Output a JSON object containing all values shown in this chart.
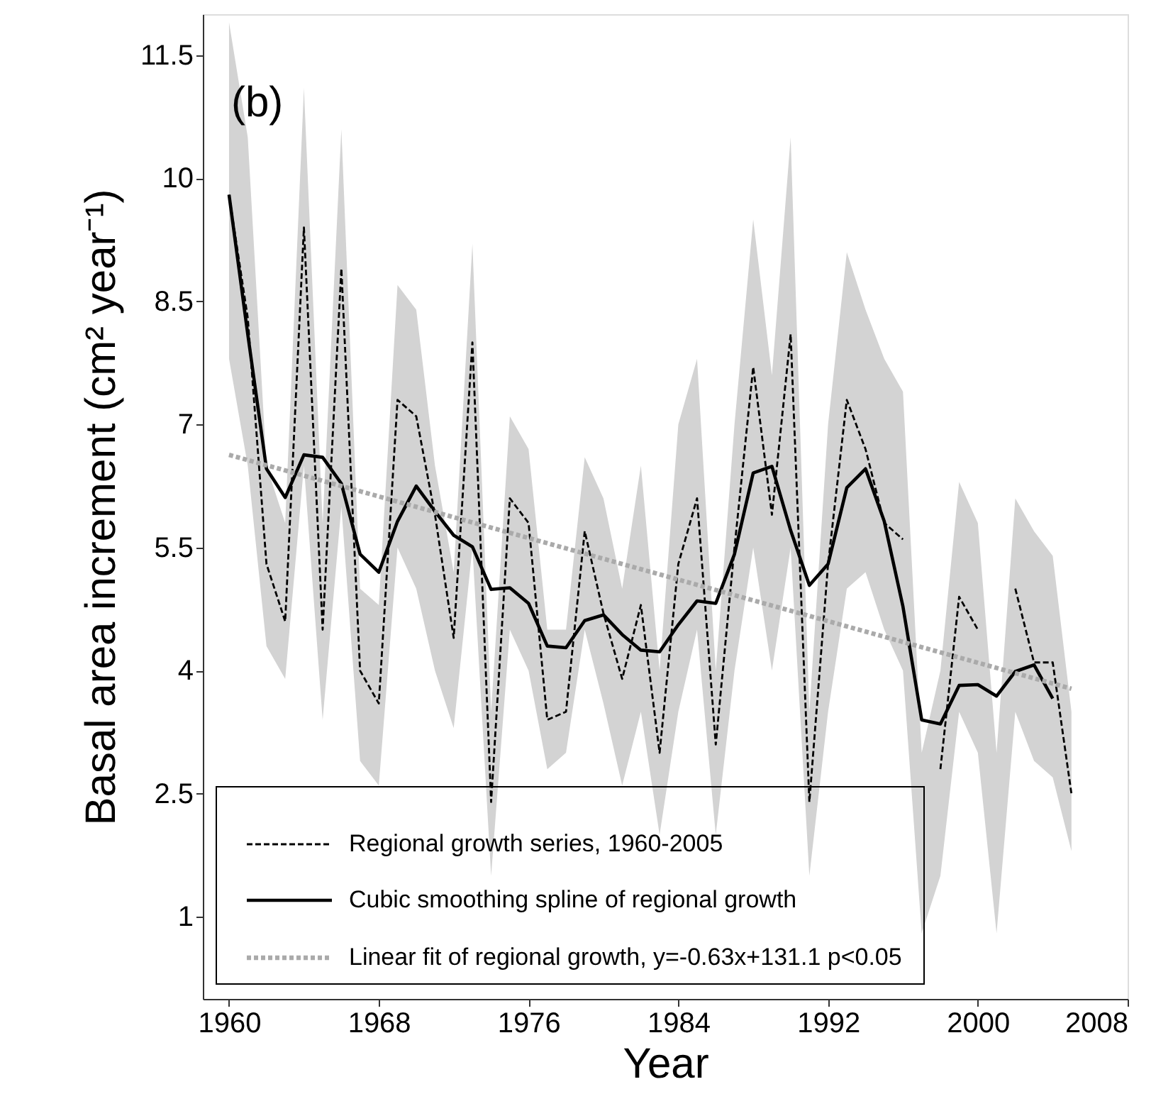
{
  "chart_data": {
    "type": "line",
    "xlabel": "Year",
    "ylabel": "Basal area increment  (cm² year⁻¹)",
    "annotations": [
      "(b)"
    ],
    "xlim": [
      1958.6,
      2008
    ],
    "xticks": [
      1960,
      1968,
      1976,
      1984,
      1992,
      2000,
      2008
    ],
    "ylim": [
      0,
      12
    ],
    "yticks": [
      1,
      2.5,
      4,
      5.5,
      7,
      8.5,
      10,
      11.5
    ],
    "grid": false,
    "legend": "bottom",
    "marker": "none",
    "series": [
      {
        "name": "Regional growth series, 1960-2005",
        "color": "#000000",
        "line_style": "dashed",
        "x": [
          1960,
          1961,
          1962,
          1963,
          1964,
          1965,
          1966,
          1967,
          1968,
          1969,
          1970,
          1971,
          1972,
          1973,
          1974,
          1975,
          1976,
          1977,
          1978,
          1979,
          1980,
          1981,
          1982,
          1983,
          1984,
          1985,
          1986,
          1987,
          1988,
          1989,
          1990,
          1991,
          1992,
          1993,
          1994,
          1995,
          1996,
          1997,
          1998,
          1999,
          2000,
          2001,
          2002,
          2003,
          2004,
          2005
        ],
        "values": [
          9.8,
          8.3,
          5.3,
          4.6,
          9.4,
          4.5,
          8.9,
          4.0,
          3.6,
          7.3,
          7.1,
          5.9,
          4.4,
          8.0,
          2.4,
          6.1,
          5.8,
          3.4,
          3.5,
          5.7,
          4.7,
          3.9,
          4.8,
          3.0,
          5.3,
          6.1,
          3.1,
          5.5,
          7.7,
          5.9,
          8.1,
          2.4,
          5.3,
          7.3,
          6.7,
          5.8,
          5.6,
          null,
          2.8,
          4.9,
          4.5,
          null,
          5.0,
          4.1,
          4.1,
          2.5
        ],
        "lower": [
          7.8,
          6.5,
          4.3,
          3.9,
          6.5,
          3.4,
          6.0,
          2.9,
          2.6,
          5.5,
          5.0,
          4.0,
          3.3,
          5.5,
          1.5,
          4.5,
          4.0,
          2.8,
          3.0,
          4.5,
          3.6,
          2.6,
          3.5,
          2.0,
          3.5,
          4.5,
          2.0,
          4.0,
          5.5,
          4.0,
          5.5,
          1.5,
          3.5,
          5.0,
          5.2,
          4.5,
          4.0,
          0.8,
          1.5,
          3.5,
          3.0,
          0.8,
          3.5,
          2.9,
          2.7,
          1.8
        ],
        "upper": [
          11.9,
          10.5,
          6.5,
          5.8,
          11.1,
          5.8,
          10.6,
          5.0,
          4.8,
          8.7,
          8.4,
          6.5,
          5.2,
          9.2,
          3.5,
          7.1,
          6.7,
          4.5,
          4.5,
          6.6,
          6.1,
          5.0,
          6.5,
          4.0,
          7.0,
          7.8,
          4.0,
          7.0,
          9.5,
          7.6,
          10.5,
          3.5,
          7.0,
          9.1,
          8.4,
          7.8,
          7.4,
          3.0,
          4.0,
          6.3,
          5.8,
          3.0,
          6.1,
          5.7,
          5.4,
          3.5
        ]
      },
      {
        "name": "Cubic smoothing spline of regional growth",
        "color": "#000000",
        "line_style": "solid",
        "x": [
          1960,
          1961,
          1962,
          1963,
          1964,
          1965,
          1966,
          1967,
          1968,
          1969,
          1970,
          1971,
          1972,
          1973,
          1974,
          1975,
          1976,
          1977,
          1978,
          1979,
          1980,
          1981,
          1982,
          1983,
          1984,
          1985,
          1986,
          1987,
          1988,
          1989,
          1990,
          1991,
          1992,
          1993,
          1994,
          1995,
          1996,
          1997,
          1998,
          1999,
          2000,
          2001,
          2002,
          2003,
          2004
        ],
        "values": [
          9.8,
          8.1,
          6.46,
          6.11,
          6.63,
          6.6,
          6.28,
          5.42,
          5.2,
          5.82,
          6.25,
          5.94,
          5.65,
          5.51,
          4.99,
          5.01,
          4.82,
          4.3,
          4.28,
          4.61,
          4.68,
          4.44,
          4.25,
          4.23,
          4.56,
          4.85,
          4.82,
          5.42,
          6.41,
          6.49,
          5.71,
          5.04,
          5.3,
          6.23,
          6.46,
          5.82,
          4.78,
          3.4,
          3.35,
          3.82,
          3.83,
          3.69,
          3.99,
          4.07,
          3.66
        ]
      },
      {
        "name": "Linear fit of regional growth, y=-0.63x+131.1  p<0.05",
        "color": "#aaaaaa",
        "line_style": "dotted",
        "x": [
          1960,
          2005
        ],
        "values": [
          6.63,
          3.78
        ]
      }
    ]
  }
}
